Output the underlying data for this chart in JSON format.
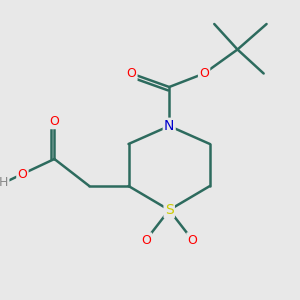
{
  "bg_color": "#e8e8e8",
  "bond_color": "#2d6b5e",
  "bond_width": 1.8,
  "atom_colors": {
    "O": "#ff0000",
    "N": "#0000cc",
    "S": "#cccc00",
    "H": "#888888",
    "C": "#2d6b5e"
  },
  "font_size": 9,
  "fig_size": [
    3.0,
    3.0
  ],
  "dpi": 100
}
